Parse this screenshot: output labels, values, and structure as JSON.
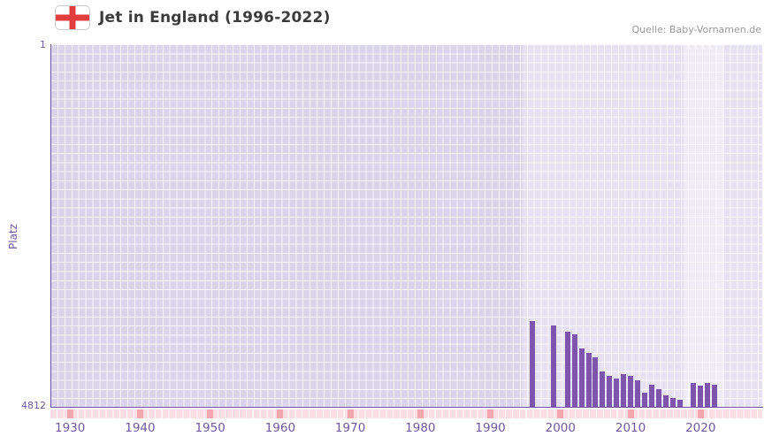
{
  "chart_data": {
    "type": "bar",
    "title": "Jet in England (1996-2022)",
    "source": "Quelle: Baby-Vornamen.de",
    "ylabel": "Platz",
    "grid": true,
    "legend_position": "none",
    "y_axis": {
      "min": 1,
      "max": 4812,
      "inverted": true,
      "top_label": "1",
      "bottom_label": "4812"
    },
    "x_axis": {
      "min": 1927.2,
      "max": 2028.8,
      "ticks": [
        1930,
        1940,
        1950,
        1960,
        1970,
        1980,
        1990,
        2000,
        2010,
        2020
      ]
    },
    "bands": [
      {
        "from": 1994.6,
        "to": 2028.8,
        "color": "#e6e1f0"
      },
      {
        "from": 2017.6,
        "to": 2023.4,
        "color": "#efecf6"
      }
    ],
    "points": [
      {
        "year": 1996,
        "rank": 3670
      },
      {
        "year": 1999,
        "rank": 3730
      },
      {
        "year": 2001,
        "rank": 3810
      },
      {
        "year": 2002,
        "rank": 3845
      },
      {
        "year": 2003,
        "rank": 4040
      },
      {
        "year": 2004,
        "rank": 4100
      },
      {
        "year": 2005,
        "rank": 4160
      },
      {
        "year": 2006,
        "rank": 4340
      },
      {
        "year": 2007,
        "rank": 4400
      },
      {
        "year": 2008,
        "rank": 4440
      },
      {
        "year": 2009,
        "rank": 4375
      },
      {
        "year": 2010,
        "rank": 4400
      },
      {
        "year": 2011,
        "rank": 4460
      },
      {
        "year": 2012,
        "rank": 4630
      },
      {
        "year": 2013,
        "rank": 4515
      },
      {
        "year": 2014,
        "rank": 4580
      },
      {
        "year": 2015,
        "rank": 4665
      },
      {
        "year": 2016,
        "rank": 4695
      },
      {
        "year": 2017,
        "rank": 4720
      },
      {
        "year": 2019,
        "rank": 4490
      },
      {
        "year": 2020,
        "rank": 4525
      },
      {
        "year": 2021,
        "rank": 4500
      },
      {
        "year": 2022,
        "rank": 4515
      }
    ],
    "colors": {
      "bar": "#7d55ad",
      "axis": "#6f579f",
      "tick_label": "#6f579f",
      "plot_bg": "#dbd5ea",
      "strip_base": "#fbdee4",
      "strip_decade": "#f2a6ae",
      "flag_cross": "#e03e3e",
      "title_text": "#3c3c3c",
      "source_text": "#999999"
    }
  }
}
